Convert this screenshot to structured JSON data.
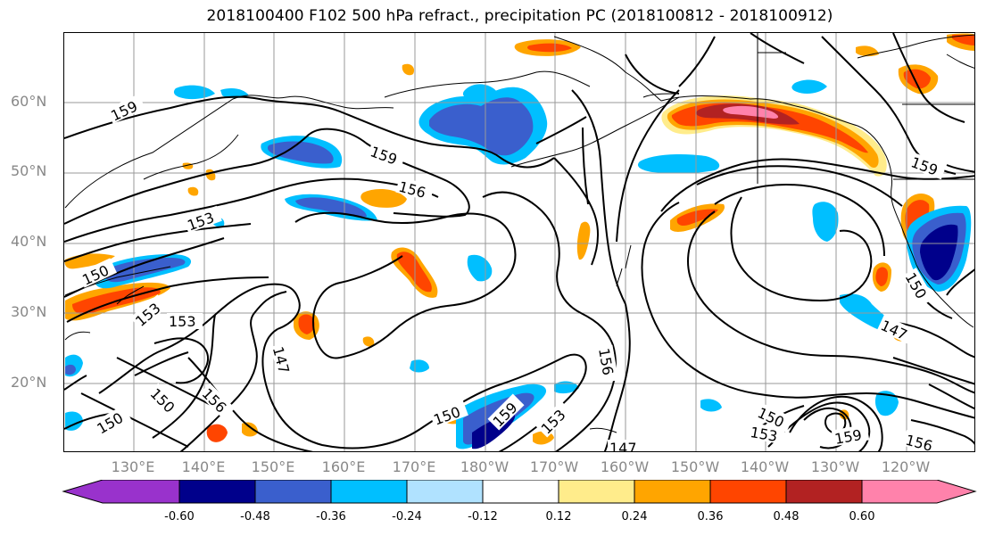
{
  "title": "2018100400 F102 500 hPa refract., precipitation PC (2018100812 - 2018100912)",
  "lat_labels": [
    "60°N",
    "50°N",
    "40°N",
    "30°N",
    "20°N"
  ],
  "lon_labels": [
    "130°E",
    "140°E",
    "150°E",
    "160°E",
    "170°E",
    "180°W",
    "170°W",
    "160°W",
    "150°W",
    "140°W",
    "130°W",
    "120°W"
  ],
  "contour_labels": [
    "159",
    "159",
    "156",
    "153",
    "150",
    "153",
    "153",
    "147",
    "150",
    "150",
    "150",
    "156",
    "159",
    "153",
    "147",
    "156",
    "150",
    "153",
    "159",
    "156",
    "159",
    "147",
    "150"
  ],
  "colorbar": {
    "colors": [
      "#9932cc",
      "#00008b",
      "#3a5fcd",
      "#00bfff",
      "#b0e2ff",
      "#ffffff",
      "#ffec8b",
      "#ffa500",
      "#ff4500",
      "#b22222",
      "#ff82ab"
    ],
    "tick_labels": [
      "-0.60",
      "-0.48",
      "-0.36",
      "-0.24",
      "-0.12",
      "0.12",
      "0.24",
      "0.36",
      "0.48",
      "0.60"
    ]
  },
  "colors": {
    "grid": "#999999",
    "contour": "#000000",
    "axis_text": "#888888"
  }
}
